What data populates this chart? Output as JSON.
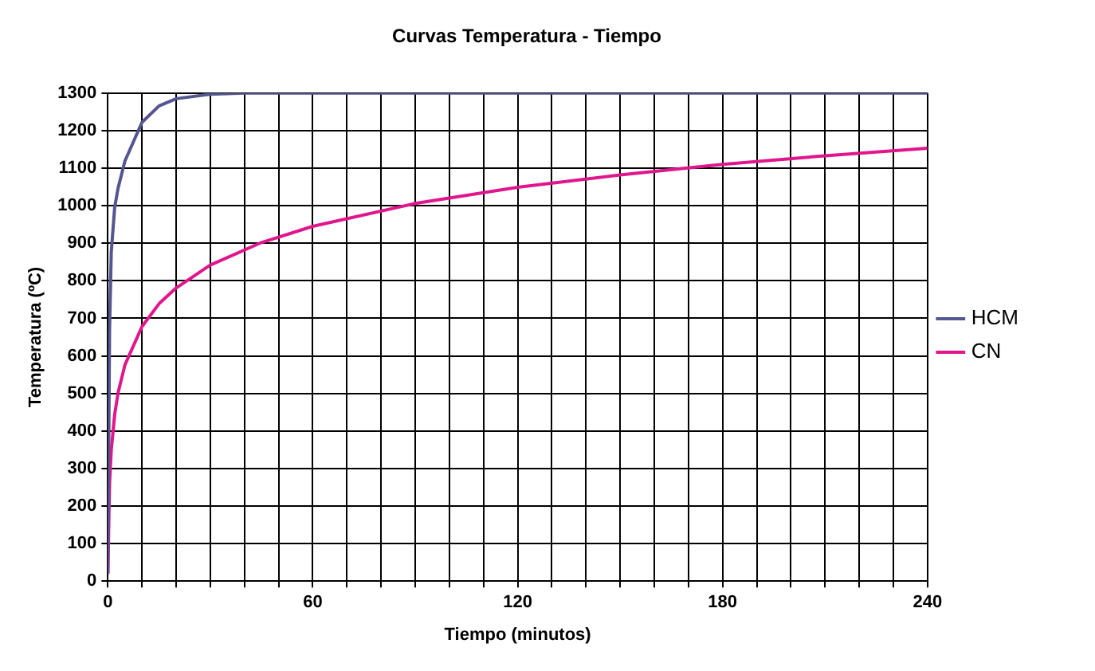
{
  "chart_data": {
    "type": "line",
    "title": "Curvas Temperatura - Tiempo",
    "xlabel": "Tiempo (minutos)",
    "ylabel": "Temperatura (ºC)",
    "series": [
      {
        "name": "HCM",
        "color": "#55558f",
        "x": [
          0,
          0.5,
          1,
          2,
          3,
          5,
          10,
          15,
          20,
          30,
          40,
          60,
          120,
          180,
          240
        ],
        "values": [
          20,
          670,
          877,
          996,
          1047,
          1119,
          1222,
          1266,
          1285,
          1297,
          1300,
          1300,
          1300,
          1300,
          1300
        ]
      },
      {
        "name": "CN",
        "color": "#e0168c",
        "x": [
          0,
          0.5,
          1,
          2,
          3,
          5,
          10,
          15,
          20,
          30,
          45,
          60,
          90,
          120,
          150,
          180,
          210,
          240
        ],
        "values": [
          20,
          261,
          349,
          444,
          502,
          576,
          678,
          739,
          781,
          842,
          902,
          945,
          1006,
          1049,
          1082,
          1110,
          1133,
          1153
        ]
      }
    ],
    "xlim": [
      0,
      240
    ],
    "xticks": [
      0,
      {
        "value": 10,
        "label": null
      },
      {
        "value": 20,
        "label": null
      },
      {
        "value": 30,
        "label": null
      },
      {
        "value": 40,
        "label": null
      },
      {
        "value": 50,
        "label": null
      },
      60,
      {
        "value": 70,
        "label": null
      },
      {
        "value": 80,
        "label": null
      },
      {
        "value": 90,
        "label": null
      },
      {
        "value": 100,
        "label": null
      },
      {
        "value": 110,
        "label": null
      },
      120,
      {
        "value": 130,
        "label": null
      },
      {
        "value": 140,
        "label": null
      },
      {
        "value": 150,
        "label": null
      },
      {
        "value": 160,
        "label": null
      },
      {
        "value": 170,
        "label": null
      },
      180,
      {
        "value": 190,
        "label": null
      },
      {
        "value": 200,
        "label": null
      },
      {
        "value": 210,
        "label": null
      },
      {
        "value": 220,
        "label": null
      },
      {
        "value": 230,
        "label": null
      },
      240
    ],
    "ylim": [
      0,
      1300
    ],
    "yticks": [
      0,
      100,
      200,
      300,
      400,
      500,
      600,
      700,
      800,
      900,
      1000,
      1100,
      1200,
      1300
    ],
    "grid": true,
    "legend": "right",
    "marker": "none",
    "line_style": "solid"
  }
}
